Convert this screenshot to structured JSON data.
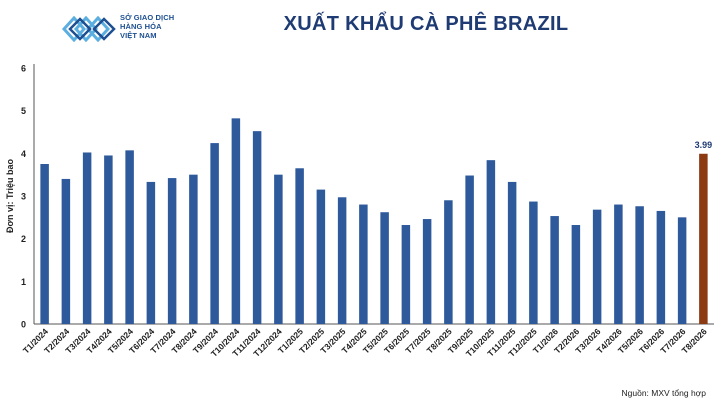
{
  "logo": {
    "line1": "SỞ GIAO DỊCH",
    "line2": "HÀNG HÓA",
    "line3": "VIỆT NAM"
  },
  "title": "XUẤT KHẨU CÀ PHÊ BRAZIL",
  "source": "Nguồn: MXV tổng hợp",
  "colors": {
    "bar": "#2e5a9c",
    "highlight": "#8b3a12",
    "title": "#1f3b73"
  },
  "chart_data": {
    "type": "bar",
    "ylabel": "Đơn vị: Triệu bao",
    "ylim": [
      0,
      6
    ],
    "yticks": [
      0,
      1,
      2,
      3,
      4,
      5,
      6
    ],
    "grid": false,
    "categories": [
      "T1/2024",
      "T2/2024",
      "T3/2024",
      "T4/2024",
      "T5/2024",
      "T6/2024",
      "T7/2024",
      "T8/2024",
      "T9/2024",
      "T10/2024",
      "T11/2024",
      "T12/2024",
      "T1/2025",
      "T2/2025",
      "T3/2025",
      "T4/2025",
      "T5/2025",
      "T6/2025",
      "T7/2025",
      "T8/2025",
      "T9/2025",
      "T10/2025",
      "T11/2025",
      "T12/2025",
      "T1/2026",
      "T2/2026",
      "T3/2026",
      "T4/2026",
      "T5/2026",
      "T6/2026",
      "T7/2026",
      "T8/2026"
    ],
    "values": [
      3.75,
      3.4,
      4.02,
      3.95,
      4.07,
      3.33,
      3.42,
      3.5,
      4.24,
      4.82,
      4.52,
      3.5,
      3.65,
      3.15,
      2.97,
      2.8,
      2.62,
      2.32,
      2.46,
      2.9,
      3.48,
      3.84,
      3.33,
      2.87,
      2.53,
      2.32,
      2.68,
      2.8,
      2.76,
      2.65,
      2.5,
      3.99
    ],
    "highlight_index": 31,
    "data_labels": [
      {
        "category": "T8/2026",
        "text": "3.99"
      }
    ]
  }
}
